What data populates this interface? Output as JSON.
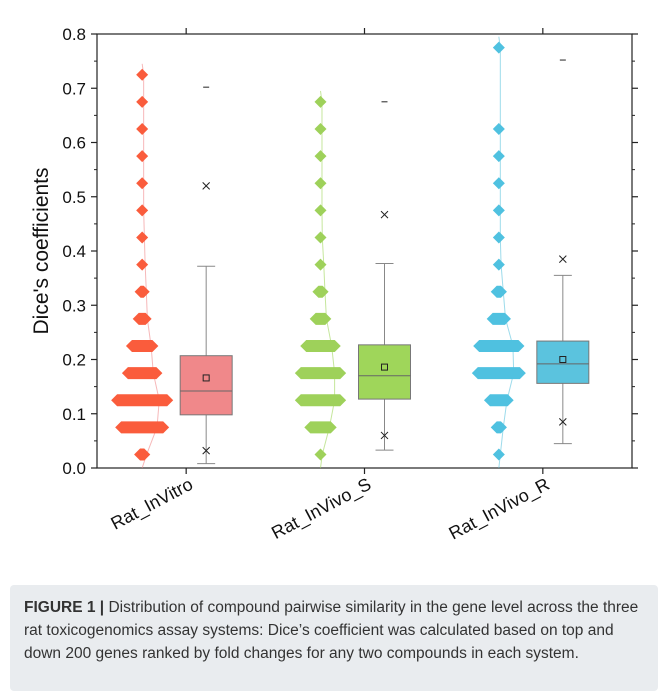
{
  "chart_data": {
    "type": "box",
    "title": "",
    "xlabel": "",
    "ylabel": "Dice's coefficients",
    "ylim": [
      0.0,
      0.8
    ],
    "yticks": [
      "0.0",
      "0.1",
      "0.2",
      "0.3",
      "0.4",
      "0.5",
      "0.6",
      "0.7",
      "0.8"
    ],
    "categories": [
      "Rat_InVitro",
      "Rat_InVivo_S",
      "Rat_InVivo_R"
    ],
    "series": [
      {
        "category": "Rat_InVitro",
        "color": "#f0888a",
        "point_color": "#fa5c3c",
        "box": {
          "q1": 0.098,
          "median": 0.142,
          "q3": 0.207,
          "mean": 0.166,
          "whisker_low": 0.008,
          "whisker_high": 0.372,
          "p1": 0.032,
          "p99": 0.52,
          "min": 0.0,
          "max": 0.702
        },
        "distribution": [
          {
            "y": 0.025,
            "w": 0.3
          },
          {
            "y": 0.075,
            "w": 1.0
          },
          {
            "y": 0.125,
            "w": 1.15
          },
          {
            "y": 0.175,
            "w": 0.75
          },
          {
            "y": 0.225,
            "w": 0.6
          },
          {
            "y": 0.275,
            "w": 0.35
          },
          {
            "y": 0.325,
            "w": 0.28
          },
          {
            "y": 0.375,
            "w": 0.2
          },
          {
            "y": 0.425,
            "w": 0.15
          },
          {
            "y": 0.475,
            "w": 0.1
          },
          {
            "y": 0.525,
            "w": 0.1
          },
          {
            "y": 0.575,
            "w": 0.1
          },
          {
            "y": 0.625,
            "w": 0.1
          },
          {
            "y": 0.675,
            "w": 0.1
          },
          {
            "y": 0.725,
            "w": 0.1
          }
        ]
      },
      {
        "category": "Rat_InVivo_S",
        "color": "#9fd65a",
        "point_color": "#9ed15a",
        "box": {
          "q1": 0.127,
          "median": 0.17,
          "q3": 0.227,
          "mean": 0.186,
          "whisker_low": 0.033,
          "whisker_high": 0.377,
          "p1": 0.06,
          "p99": 0.467,
          "min": 0.0,
          "max": 0.675
        },
        "distribution": [
          {
            "y": 0.025,
            "w": 0.12
          },
          {
            "y": 0.075,
            "w": 0.6
          },
          {
            "y": 0.125,
            "w": 0.95
          },
          {
            "y": 0.175,
            "w": 0.95
          },
          {
            "y": 0.225,
            "w": 0.75
          },
          {
            "y": 0.275,
            "w": 0.4
          },
          {
            "y": 0.325,
            "w": 0.3
          },
          {
            "y": 0.375,
            "w": 0.22
          },
          {
            "y": 0.425,
            "w": 0.12
          },
          {
            "y": 0.475,
            "w": 0.1
          },
          {
            "y": 0.525,
            "w": 0.1
          },
          {
            "y": 0.575,
            "w": 0.1
          },
          {
            "y": 0.625,
            "w": 0.1
          },
          {
            "y": 0.675,
            "w": 0.1
          }
        ]
      },
      {
        "category": "Rat_InVivo_R",
        "color": "#5bc3de",
        "point_color": "#4fc1e0",
        "box": {
          "q1": 0.156,
          "median": 0.192,
          "q3": 0.234,
          "mean": 0.2,
          "whisker_low": 0.045,
          "whisker_high": 0.355,
          "p1": 0.085,
          "p99": 0.385,
          "min": 0.0,
          "max": 0.752
        },
        "distribution": [
          {
            "y": 0.025,
            "w": 0.1
          },
          {
            "y": 0.075,
            "w": 0.3
          },
          {
            "y": 0.125,
            "w": 0.55
          },
          {
            "y": 0.175,
            "w": 1.0
          },
          {
            "y": 0.225,
            "w": 0.95
          },
          {
            "y": 0.275,
            "w": 0.45
          },
          {
            "y": 0.325,
            "w": 0.3
          },
          {
            "y": 0.375,
            "w": 0.15
          },
          {
            "y": 0.425,
            "w": 0.1
          },
          {
            "y": 0.475,
            "w": 0.1
          },
          {
            "y": 0.525,
            "w": 0.1
          },
          {
            "y": 0.575,
            "w": 0.1
          },
          {
            "y": 0.625,
            "w": 0.1
          },
          {
            "y": 0.775,
            "w": 0.1
          }
        ]
      }
    ]
  },
  "caption": {
    "label": "FIGURE 1 |",
    "text": " Distribution of compound pairwise similarity in the gene level across the three rat toxicogenomics assay systems: Dice’s coefficient was calculated based on top and down 200 genes ranked by fold changes for any two compounds in each system."
  }
}
